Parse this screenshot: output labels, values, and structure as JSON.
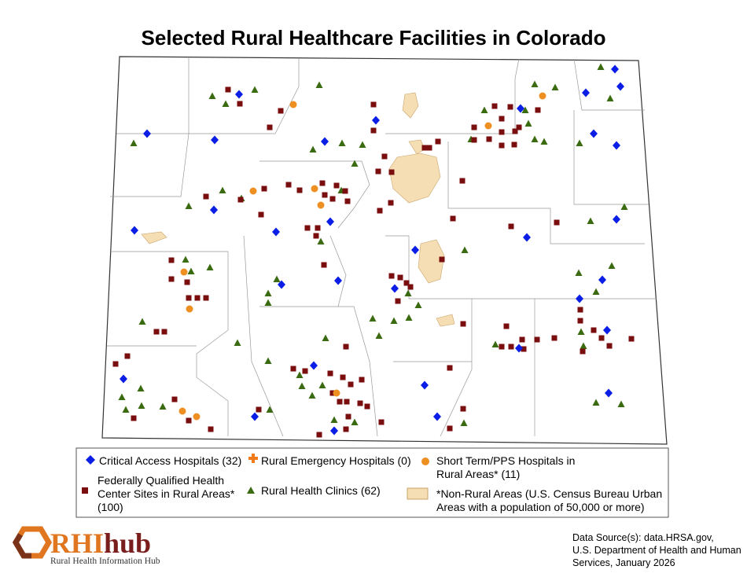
{
  "title": "Selected Rural Healthcare Facilities in Colorado",
  "legend": {
    "items": [
      {
        "label": "Critical Access Hospitals (32)"
      },
      {
        "label": "Rural Emergency Hospitals (0)"
      },
      {
        "label": "Short Term/PPS Hospitals in Rural Areas* (11)"
      },
      {
        "label": "Federally Qualified Health Center Sites in Rural Areas* (100)"
      },
      {
        "label": "Rural Health Clinics (62)"
      },
      {
        "label": "*Non-Rural Areas (U.S. Census Bureau Urban Areas with a population of 50,000 or more)"
      }
    ]
  },
  "source": [
    "Data Source(s): data.HRSA.gov,",
    "U.S. Department of Health and Human",
    "Services, January 2026"
  ],
  "logo": {
    "name": "RHIhub",
    "subtitle": "Rural Health Information Hub"
  }
}
